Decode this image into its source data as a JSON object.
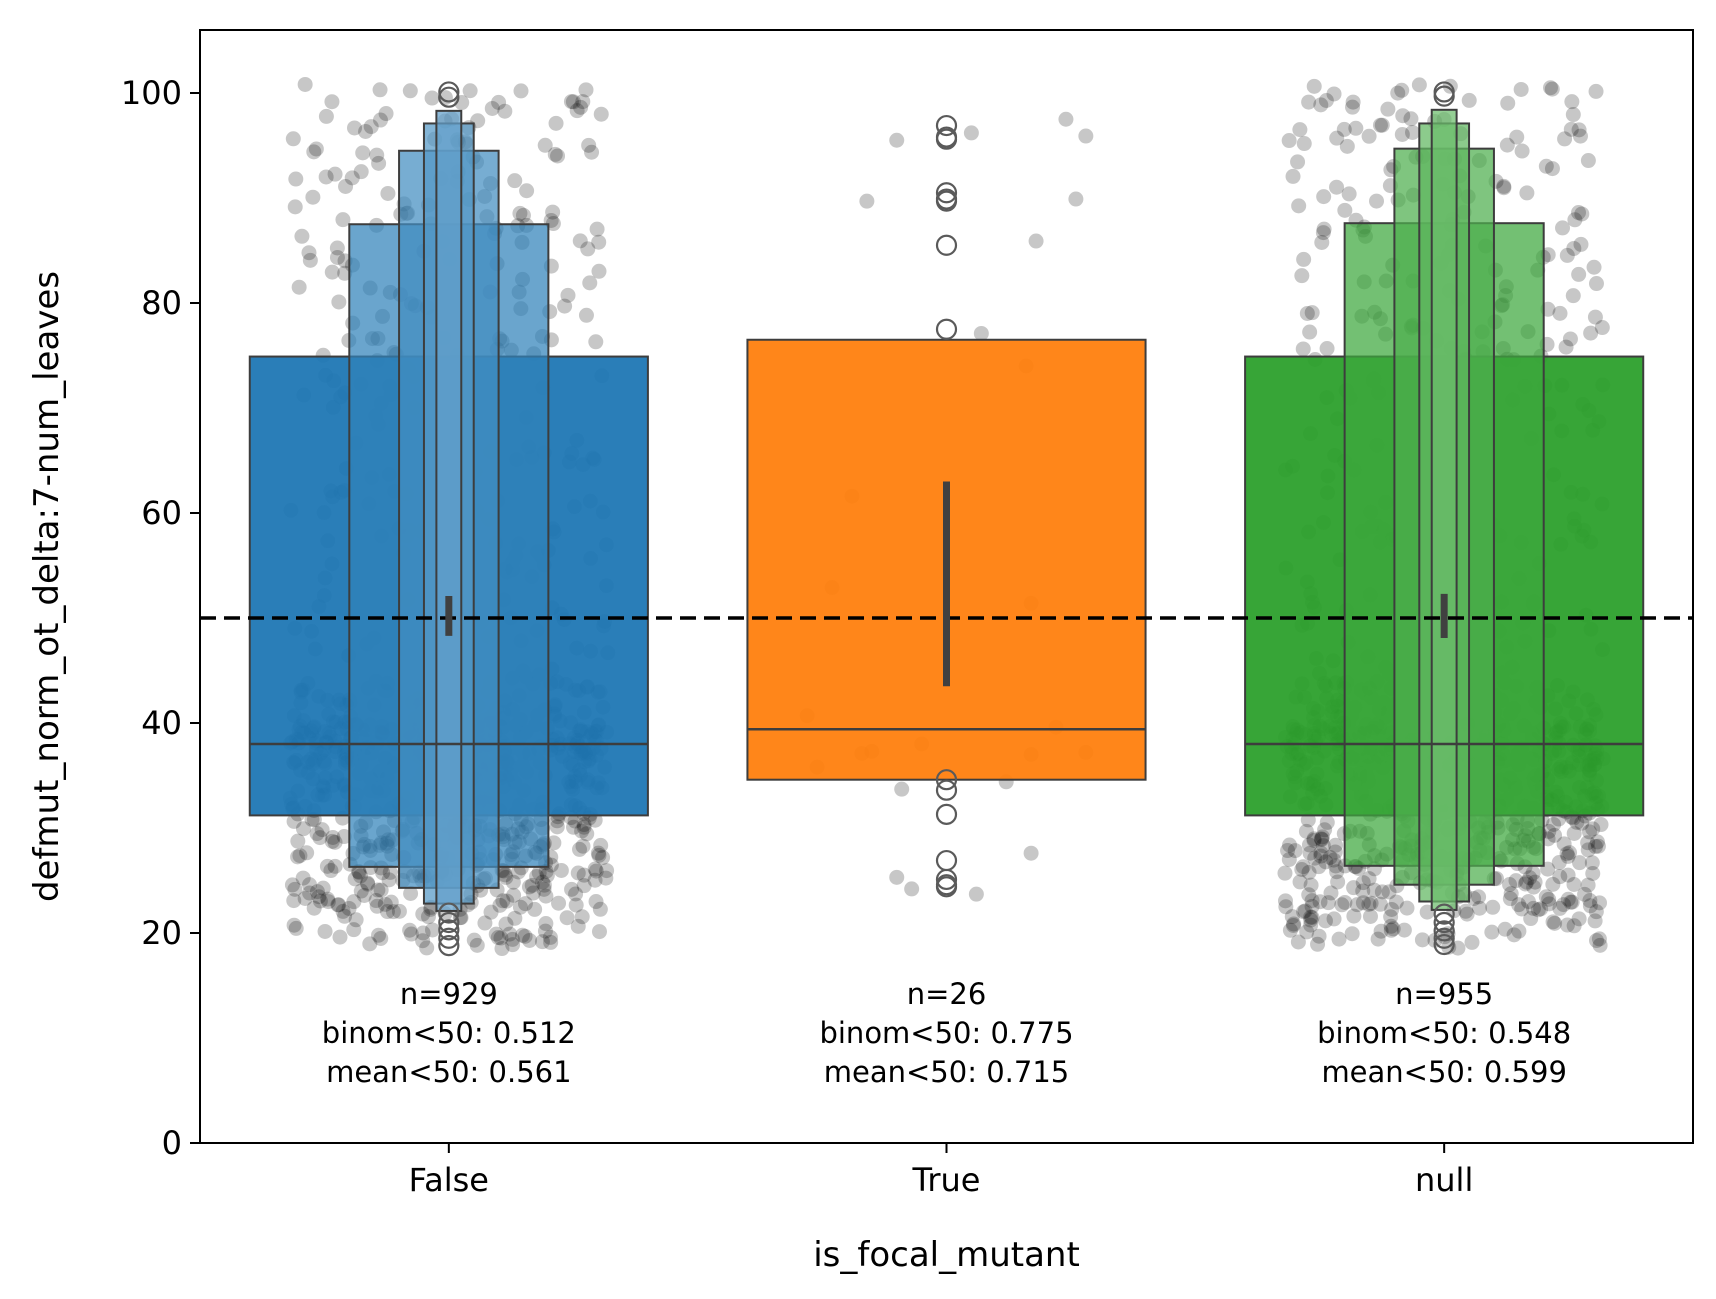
{
  "chart_data": {
    "type": "boxen",
    "xlabel": "is_focal_mutant",
    "ylabel": "defmut_norm_ot_delta:7-num_leaves",
    "ylim": [
      0,
      106
    ],
    "y_ticks": [
      0,
      20,
      40,
      60,
      80,
      100
    ],
    "categories": [
      "False",
      "True",
      "null"
    ],
    "reference_line": {
      "y": 50,
      "style": "dashed",
      "color": "#000000"
    },
    "groups": [
      {
        "category": "False",
        "color": "#1f77b4",
        "median": 38,
        "mean_ci": [
          48.3,
          52.1
        ],
        "boxes": [
          {
            "low": 31.2,
            "high": 74.9,
            "width": 0.8
          },
          {
            "low": 26.3,
            "high": 87.5,
            "width": 0.4
          },
          {
            "low": 24.3,
            "high": 94.5,
            "width": 0.2
          },
          {
            "low": 22.8,
            "high": 97.1,
            "width": 0.1
          },
          {
            "low": 22.1,
            "high": 98.3,
            "width": 0.05
          }
        ],
        "outliers": [
          21.9,
          21.0,
          20.3,
          19.5,
          18.8,
          100.1,
          99.6
        ],
        "n": 929,
        "annotation": [
          "n=929",
          "binom<50: 0.512",
          "mean<50: 0.561"
        ]
      },
      {
        "category": "True",
        "color": "#ff7f0e",
        "median": 39.4,
        "mean_ci": [
          43.5,
          63.0
        ],
        "boxes": [
          {
            "low": 34.6,
            "high": 76.5,
            "width": 0.8
          }
        ],
        "outliers": [
          96.9,
          95.8,
          95.6,
          90.5,
          89.9,
          89.7,
          85.5,
          77.5,
          34.6,
          33.6,
          31.3,
          26.9,
          25.1,
          24.6,
          24.4
        ],
        "n": 26,
        "annotation": [
          "n=26",
          "binom<50: 0.775",
          "mean<50: 0.715"
        ]
      },
      {
        "category": "null",
        "color": "#2ca02c",
        "median": 38,
        "mean_ci": [
          48.1,
          52.3
        ],
        "boxes": [
          {
            "low": 31.2,
            "high": 74.9,
            "width": 0.8
          },
          {
            "low": 26.4,
            "high": 87.6,
            "width": 0.4
          },
          {
            "low": 24.6,
            "high": 94.7,
            "width": 0.2
          },
          {
            "low": 23.0,
            "high": 97.1,
            "width": 0.1
          },
          {
            "low": 22.2,
            "high": 98.4,
            "width": 0.05
          }
        ],
        "outliers": [
          21.8,
          21.0,
          20.2,
          19.5,
          18.9,
          100.1,
          99.7
        ],
        "n": 955,
        "annotation": [
          "n=955",
          "binom<50: 0.548",
          "mean<50: 0.599"
        ]
      }
    ],
    "jitter_points": {
      "color": "#000000",
      "seed": 12345,
      "spread": 0.32,
      "distribution": [
        {
          "category": "False",
          "bands": [
            [
              18.5,
              22,
              0.05
            ],
            [
              22,
              30,
              0.21
            ],
            [
              30,
              36,
              0.16
            ],
            [
              36,
              40,
              0.22
            ],
            [
              40,
              44,
              0.08
            ],
            [
              44,
              60,
              0.07
            ],
            [
              60,
              75,
              0.06
            ],
            [
              75,
              88,
              0.07
            ],
            [
              88,
              101,
              0.08
            ]
          ]
        },
        {
          "category": "null",
          "bands": [
            [
              18.5,
              22,
              0.05
            ],
            [
              22,
              30,
              0.21
            ],
            [
              30,
              36,
              0.16
            ],
            [
              36,
              40,
              0.22
            ],
            [
              40,
              44,
              0.08
            ],
            [
              44,
              60,
              0.07
            ],
            [
              60,
              75,
              0.06
            ],
            [
              75,
              88,
              0.07
            ],
            [
              88,
              101,
              0.08
            ]
          ]
        }
      ],
      "true_points": [
        [
          -0.1,
          95.5
        ],
        [
          0.05,
          96.2
        ],
        [
          0.24,
          97.5
        ],
        [
          0.28,
          95.9
        ],
        [
          -0.16,
          89.7
        ],
        [
          0.26,
          89.9
        ],
        [
          0.18,
          85.9
        ],
        [
          0.07,
          77.1
        ],
        [
          0.16,
          74.0
        ],
        [
          -0.19,
          61.6
        ],
        [
          -0.23,
          52.9
        ],
        [
          0.17,
          51.4
        ],
        [
          -0.28,
          40.7
        ],
        [
          -0.26,
          35.8
        ],
        [
          -0.17,
          37.1
        ],
        [
          -0.15,
          37.3
        ],
        [
          -0.05,
          38.0
        ],
        [
          0.22,
          39.6
        ],
        [
          0.28,
          37.2
        ],
        [
          0.17,
          37.0
        ],
        [
          0.12,
          34.4
        ],
        [
          -0.09,
          33.7
        ],
        [
          0.17,
          27.6
        ],
        [
          -0.1,
          25.3
        ],
        [
          -0.07,
          24.2
        ],
        [
          0.06,
          23.7
        ]
      ]
    }
  }
}
